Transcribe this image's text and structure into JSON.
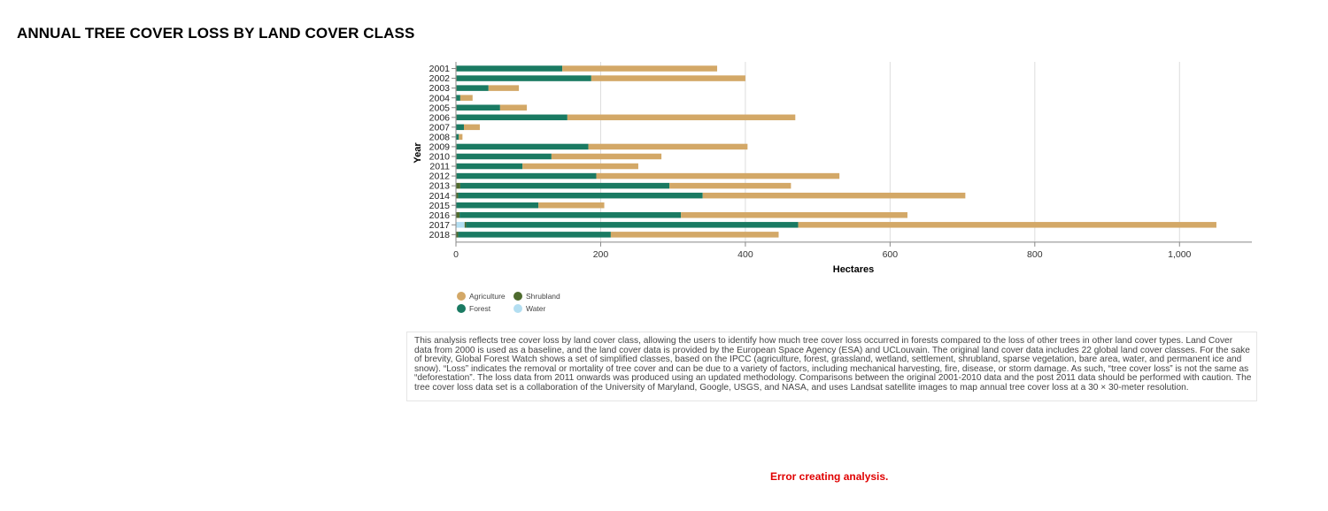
{
  "page": {
    "title": "ANNUAL TREE COVER LOSS BY LAND COVER CLASS",
    "description": "This analysis reflects tree cover loss by land cover class, allowing the users to identify how much tree cover loss occurred in forests compared to the loss of other trees in other land cover types. Land Cover data from 2000 is used as a baseline, and the land cover data is provided by the European Space Agency (ESA) and UCLouvain. The original land cover data includes 22 global land cover classes. For the sake of brevity, Global Forest Watch shows a set of simplified classes, based on the IPCC (agriculture, forest, grassland, wetland, settlement, shrubland, sparse vegetation, bare area, water, and permanent ice and snow). “Loss” indicates the removal or mortality of tree cover and can be due to a variety of factors, including mechanical harvesting, fire, disease, or storm damage. As such, “tree cover loss” is not the same as “deforestation”. The loss data from 2011 onwards was produced using an updated methodology. Comparisons between the original 2001-2010 data and the post 2011 data should be performed with caution. The tree cover loss data set is a collaboration of the University of Maryland, Google, USGS, and NASA, and uses Landsat satellite images to map annual tree cover loss at a 30 × 30-meter resolution.",
    "error": "Error creating analysis."
  },
  "colors": {
    "Water": "#b3def1",
    "Shrubland": "#4e6b2e",
    "Forest": "#1a7a62",
    "Agriculture": "#d3a867",
    "axis": "#888888",
    "grid": "#dddddd"
  },
  "chart_data": {
    "type": "bar",
    "orientation": "horizontal",
    "stacked": true,
    "title": "ANNUAL TREE COVER LOSS BY LAND COVER CLASS",
    "xlabel": "Hectares",
    "ylabel": "Year",
    "xlim": [
      0,
      1100
    ],
    "xticks": [
      0,
      200,
      400,
      600,
      800,
      1000
    ],
    "xtick_labels": [
      "0",
      "200",
      "400",
      "600",
      "800",
      "1,000"
    ],
    "grid": true,
    "categories": [
      "2001",
      "2002",
      "2003",
      "2004",
      "2005",
      "2006",
      "2007",
      "2008",
      "2009",
      "2010",
      "2011",
      "2012",
      "2013",
      "2014",
      "2015",
      "2016",
      "2017",
      "2018"
    ],
    "series": [
      {
        "name": "Water",
        "values": [
          0,
          0,
          0,
          0,
          0,
          0,
          0,
          0,
          0,
          0,
          0,
          0,
          0,
          0,
          0,
          0,
          12,
          0
        ]
      },
      {
        "name": "Shrubland",
        "values": [
          1,
          1,
          1,
          0,
          1,
          1,
          0,
          0,
          1,
          1,
          1,
          1,
          6,
          3,
          0,
          5,
          2,
          3
        ]
      },
      {
        "name": "Forest",
        "values": [
          146,
          186,
          44,
          6,
          60,
          153,
          11,
          4,
          182,
          131,
          91,
          193,
          289,
          338,
          114,
          306,
          459,
          211
        ]
      },
      {
        "name": "Agriculture",
        "values": [
          214,
          213,
          42,
          17,
          37,
          315,
          22,
          5,
          220,
          152,
          160,
          336,
          168,
          363,
          91,
          313,
          578,
          232
        ]
      }
    ],
    "legend": {
      "placement": "bottom-left",
      "rows": [
        [
          "Agriculture",
          "Shrubland"
        ],
        [
          "Forest",
          "Water"
        ]
      ]
    }
  }
}
